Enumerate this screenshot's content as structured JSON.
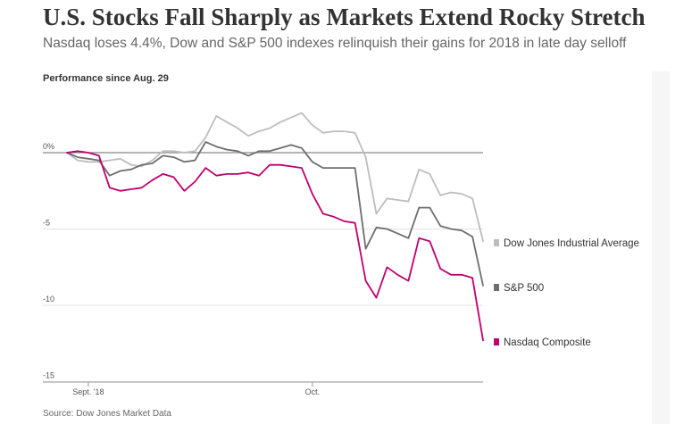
{
  "headline": "U.S. Stocks Fall Sharply as Markets Extend Rocky Stretch",
  "subhead": "Nasdaq loses 4.4%, Dow and S&P 500 indexes relinquish their gains for 2018 in late day selloff",
  "performance_label": "Performance since Aug. 29",
  "source": "Source: Dow Jones Market Data",
  "chart_data": {
    "type": "line",
    "title": "",
    "ylabel": "",
    "xlabel": "",
    "ylim": [
      -15,
      4
    ],
    "grid": true,
    "legend_position": "right, at line ends",
    "y_ticks": [
      {
        "value": 0,
        "label": "0%"
      },
      {
        "value": -5,
        "label": "-5"
      },
      {
        "value": -10,
        "label": "-10"
      },
      {
        "value": -15,
        "label": "-15"
      }
    ],
    "x_ticks": [
      {
        "value": 2,
        "label": "Sept. '18"
      },
      {
        "value": 23,
        "label": "Oct."
      }
    ],
    "x": [
      0,
      1,
      2,
      3,
      4,
      5,
      6,
      7,
      8,
      9,
      10,
      11,
      12,
      13,
      14,
      15,
      16,
      17,
      18,
      19,
      20,
      21,
      22,
      23,
      24,
      25,
      26,
      27,
      28,
      29,
      30,
      31,
      32,
      33,
      34,
      35,
      36,
      37,
      38,
      39
    ],
    "series": [
      {
        "name": "Dow Jones Industrial Average",
        "color": "#bdbdbd",
        "values": [
          0,
          -0.5,
          -0.6,
          -0.6,
          -0.5,
          -0.4,
          -0.8,
          -0.9,
          -0.5,
          0.1,
          0.1,
          0.0,
          0.1,
          1.0,
          2.4,
          2.0,
          1.6,
          1.1,
          1.4,
          1.6,
          2.0,
          2.3,
          2.6,
          1.8,
          1.3,
          1.4,
          1.4,
          1.3,
          -0.3,
          -4.0,
          -3.0,
          -3.1,
          -3.2,
          -1.1,
          -1.4,
          -2.8,
          -2.6,
          -2.7,
          -3.0,
          -5.8
        ]
      },
      {
        "name": "S&P 500",
        "color": "#6e6e6e",
        "values": [
          0,
          -0.3,
          -0.4,
          -0.5,
          -1.5,
          -1.2,
          -1.1,
          -0.8,
          -0.7,
          -0.2,
          -0.3,
          -0.6,
          -0.5,
          0.7,
          0.4,
          0.2,
          0.1,
          -0.2,
          0.1,
          0.1,
          0.3,
          0.5,
          0.3,
          -0.6,
          -1.0,
          -1.0,
          -1.0,
          -1.0,
          -6.3,
          -4.9,
          -5.0,
          -5.3,
          -5.6,
          -3.6,
          -3.6,
          -4.8,
          -5.0,
          -5.1,
          -5.5,
          -8.7
        ]
      },
      {
        "name": "Nasdaq Composite",
        "color": "#c0006e",
        "values": [
          0,
          0.1,
          0.0,
          -0.2,
          -2.3,
          -2.5,
          -2.4,
          -2.3,
          -1.8,
          -1.4,
          -1.6,
          -2.5,
          -1.9,
          -1.0,
          -1.5,
          -1.4,
          -1.4,
          -1.3,
          -1.5,
          -0.8,
          -0.8,
          -0.9,
          -1.0,
          -2.7,
          -4.0,
          -4.2,
          -4.5,
          -4.6,
          -8.4,
          -9.5,
          -7.5,
          -8.0,
          -8.4,
          -5.6,
          -5.8,
          -7.6,
          -8.0,
          -8.0,
          -8.2,
          -12.3
        ]
      }
    ]
  }
}
